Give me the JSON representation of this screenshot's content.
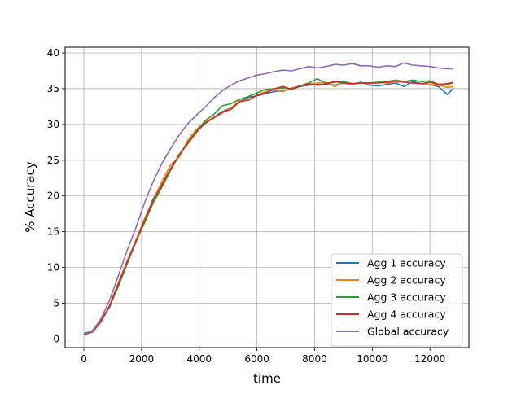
{
  "chart_data": {
    "type": "line",
    "title": "",
    "xlabel": "time",
    "ylabel": "% Accuracy",
    "xlim": [
      -650,
      13350
    ],
    "ylim": [
      -1.2,
      40.8
    ],
    "xticks": [
      0,
      2000,
      4000,
      6000,
      8000,
      10000,
      12000
    ],
    "yticks": [
      0,
      5,
      10,
      15,
      20,
      25,
      30,
      35,
      40
    ],
    "grid": true,
    "legend_position": "lower-right",
    "series": [
      {
        "name": "Agg 1 accuracy",
        "color": "#1f77b4",
        "x": [
          0,
          300,
          600,
          900,
          1200,
          1500,
          1800,
          2100,
          2400,
          2700,
          3000,
          3300,
          3600,
          3900,
          4200,
          4500,
          4800,
          5100,
          5400,
          5700,
          6000,
          6300,
          6600,
          6900,
          7200,
          7500,
          7800,
          8100,
          8400,
          8700,
          9000,
          9300,
          9600,
          9900,
          10200,
          10500,
          10800,
          11100,
          11400,
          11700,
          12000,
          12300,
          12600,
          12800
        ],
        "values": [
          0.6,
          1.2,
          2.6,
          4.5,
          7.6,
          10.6,
          13.5,
          16.6,
          19.6,
          21.6,
          23.7,
          25.6,
          27.6,
          29.0,
          30.1,
          31.0,
          31.8,
          32.3,
          33.2,
          33.8,
          34.0,
          34.3,
          34.6,
          34.7,
          35.0,
          35.3,
          35.5,
          35.6,
          35.6,
          35.5,
          35.8,
          35.6,
          35.9,
          35.5,
          35.4,
          35.6,
          35.8,
          35.3,
          36.0,
          35.7,
          35.6,
          35.3,
          34.2,
          35.0
        ]
      },
      {
        "name": "Agg 2 accuracy",
        "color": "#ff7f0e",
        "x": [
          0,
          300,
          600,
          900,
          1200,
          1500,
          1800,
          2100,
          2400,
          2700,
          3000,
          3300,
          3600,
          3900,
          4200,
          4500,
          4800,
          5100,
          5400,
          5700,
          6000,
          6300,
          6600,
          6900,
          7200,
          7500,
          7800,
          8100,
          8400,
          8700,
          9000,
          9300,
          9600,
          9900,
          10200,
          10500,
          10800,
          11100,
          11400,
          11700,
          12000,
          12300,
          12600,
          12800
        ],
        "values": [
          0.7,
          1.0,
          2.4,
          4.8,
          7.9,
          10.9,
          13.8,
          16.8,
          19.4,
          22.0,
          24.3,
          25.4,
          27.8,
          29.3,
          30.3,
          31.0,
          31.6,
          32.3,
          33.3,
          33.4,
          34.1,
          34.6,
          34.8,
          34.6,
          35.1,
          35.4,
          35.6,
          35.8,
          35.9,
          35.3,
          35.9,
          35.6,
          35.8,
          35.7,
          35.9,
          35.8,
          35.9,
          36.0,
          35.8,
          35.7,
          35.6,
          35.5,
          35.2,
          35.3
        ]
      },
      {
        "name": "Agg 3 accuracy",
        "color": "#2ca02c",
        "x": [
          0,
          300,
          600,
          900,
          1200,
          1500,
          1800,
          2100,
          2400,
          2700,
          3000,
          3300,
          3600,
          3900,
          4200,
          4500,
          4800,
          5100,
          5400,
          5700,
          6000,
          6300,
          6600,
          6900,
          7200,
          7500,
          7800,
          8100,
          8400,
          8700,
          9000,
          9300,
          9600,
          9900,
          10200,
          10500,
          10800,
          11100,
          11400,
          11700,
          12000,
          12300,
          12600,
          12800
        ],
        "values": [
          0.8,
          1.1,
          2.7,
          4.6,
          7.4,
          10.5,
          13.6,
          16.2,
          19.0,
          21.2,
          23.5,
          25.8,
          27.4,
          29.1,
          30.5,
          31.4,
          32.6,
          32.9,
          33.5,
          33.9,
          34.4,
          34.9,
          35.0,
          35.1,
          35.0,
          35.4,
          35.8,
          36.4,
          35.7,
          35.9,
          36.0,
          35.7,
          35.8,
          35.8,
          35.9,
          36.0,
          36.2,
          36.0,
          36.2,
          36.0,
          36.1,
          35.6,
          35.6,
          35.8
        ]
      },
      {
        "name": "Agg 4 accuracy",
        "color": "#d62728",
        "x": [
          0,
          300,
          600,
          900,
          1200,
          1500,
          1800,
          2100,
          2400,
          2700,
          3000,
          3300,
          3600,
          3900,
          4200,
          4500,
          4800,
          5100,
          5400,
          5700,
          6000,
          6300,
          6600,
          6900,
          7200,
          7500,
          7800,
          8100,
          8400,
          8700,
          9000,
          9300,
          9600,
          9900,
          10200,
          10500,
          10800,
          11100,
          11400,
          11700,
          12000,
          12300,
          12600,
          12800
        ],
        "values": [
          0.6,
          1.0,
          2.5,
          4.7,
          7.7,
          10.8,
          13.6,
          16.5,
          19.4,
          21.5,
          23.8,
          25.7,
          27.3,
          28.9,
          30.2,
          30.9,
          31.7,
          32.1,
          33.2,
          33.4,
          34.1,
          34.4,
          35.0,
          35.3,
          34.9,
          35.4,
          35.7,
          35.5,
          35.7,
          36.0,
          35.8,
          35.7,
          35.8,
          35.8,
          35.8,
          35.9,
          36.1,
          35.9,
          35.8,
          35.7,
          35.9,
          35.6,
          35.7,
          35.9
        ]
      },
      {
        "name": "Global accuracy",
        "color": "#9467bd",
        "x": [
          0,
          300,
          600,
          900,
          1200,
          1500,
          1800,
          2100,
          2400,
          2700,
          3000,
          3300,
          3600,
          3900,
          4200,
          4500,
          4800,
          5100,
          5400,
          5700,
          6000,
          6300,
          6600,
          6900,
          7200,
          7500,
          7800,
          8100,
          8400,
          8700,
          9000,
          9300,
          9600,
          9900,
          10200,
          10500,
          10800,
          11100,
          11400,
          11700,
          12000,
          12300,
          12600,
          12800
        ],
        "values": [
          0.7,
          1.1,
          2.9,
          5.5,
          8.9,
          12.4,
          15.5,
          19.0,
          22.0,
          24.5,
          26.6,
          28.5,
          30.1,
          31.3,
          32.4,
          33.7,
          34.7,
          35.5,
          36.1,
          36.5,
          36.9,
          37.1,
          37.4,
          37.6,
          37.5,
          37.8,
          38.1,
          37.9,
          38.1,
          38.4,
          38.3,
          38.5,
          38.2,
          38.2,
          38.0,
          38.2,
          38.1,
          38.6,
          38.3,
          38.2,
          38.1,
          37.9,
          37.8,
          37.8
        ]
      }
    ]
  }
}
